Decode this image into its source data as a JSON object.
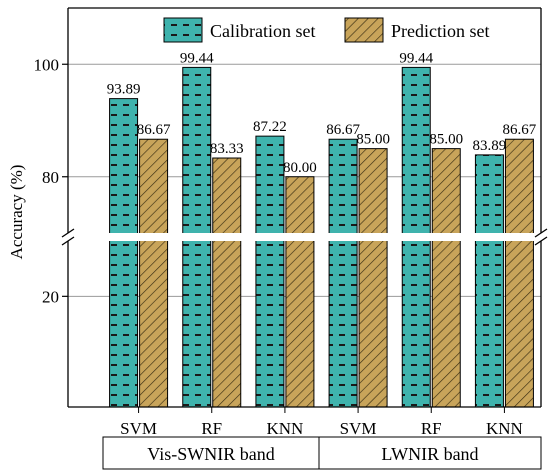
{
  "chart_data": {
    "type": "bar",
    "ylabel": "Accuracy (%)",
    "y_scale": "broken",
    "y_segments": [
      [
        0,
        30
      ],
      [
        70,
        110
      ]
    ],
    "yticks": [
      20,
      80,
      100
    ],
    "grid": true,
    "legend_position": "top",
    "categories": [
      "SVM",
      "RF",
      "KNN",
      "SVM",
      "RF",
      "KNN"
    ],
    "groups": [
      {
        "label": "Vis-SWNIR band",
        "categories": [
          "SVM",
          "RF",
          "KNN"
        ]
      },
      {
        "label": "LWNIR band",
        "categories": [
          "SVM",
          "RF",
          "KNN"
        ]
      }
    ],
    "series": [
      {
        "name": "Calibration set",
        "values": [
          93.89,
          99.44,
          87.22,
          86.67,
          99.44,
          83.89
        ],
        "value_labels": [
          "93.89",
          "99.44",
          "87.22",
          "86.67",
          "99.44",
          "83.89"
        ],
        "color": "#3fb3ad",
        "pattern": "dashes"
      },
      {
        "name": "Prediction set",
        "values": [
          86.67,
          83.33,
          80.0,
          85.0,
          85.0,
          86.67
        ],
        "value_labels": [
          "86.67",
          "83.33",
          "80.00",
          "85.00",
          "85.00",
          "86.67"
        ],
        "color": "#c8a45a",
        "pattern": "diagonal-hatch"
      }
    ]
  }
}
